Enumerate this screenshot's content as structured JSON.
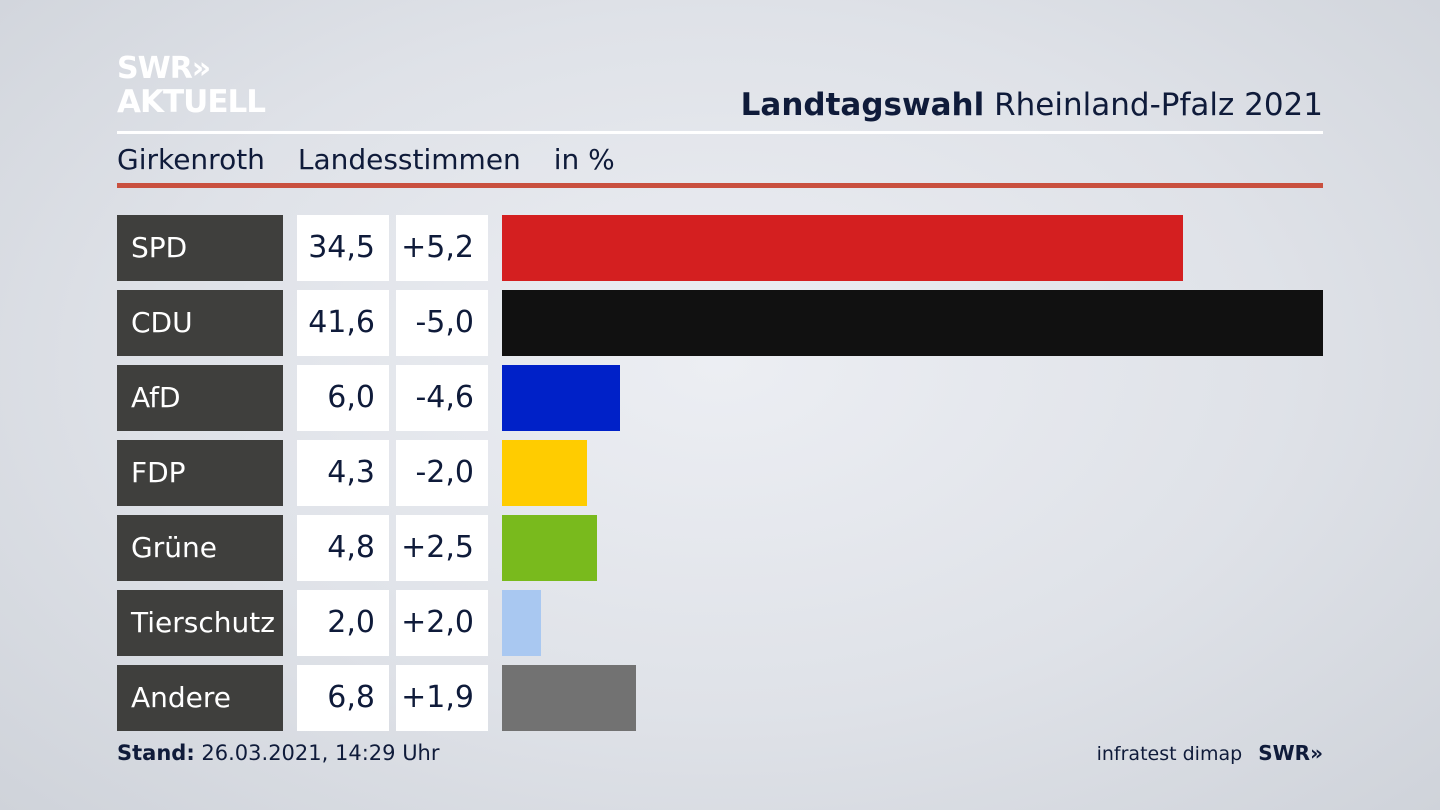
{
  "logo": {
    "line1": "SWR»",
    "line2": "AKTUELL"
  },
  "header": {
    "title_bold": "Landtagswahl",
    "title_rest": "Rheinland-Pfalz 2021"
  },
  "subtitle": {
    "place": "Girkenroth",
    "measure": "Landesstimmen",
    "unit": "in %"
  },
  "chart_data": {
    "type": "bar",
    "orientation": "horizontal",
    "categories": [
      "SPD",
      "CDU",
      "AfD",
      "FDP",
      "Grüne",
      "Tierschutz",
      "Andere"
    ],
    "values": [
      34.5,
      41.6,
      6.0,
      4.3,
      4.8,
      2.0,
      6.8
    ],
    "value_labels": [
      "34,5",
      "41,6",
      "6,0",
      "4,3",
      "4,8",
      "2,0",
      "6,8"
    ],
    "diff_labels": [
      "+5,2",
      "-5,0",
      "-4,6",
      "-2,0",
      "+2,5",
      "+2,0",
      "+1,9"
    ],
    "colors": [
      "#d41f20",
      "#111111",
      "#0021c8",
      "#ffcc00",
      "#79ba1d",
      "#a9c8f1",
      "#727272"
    ]
  },
  "footer": {
    "stand_label": "Stand:",
    "stand_value": "26.03.2021, 14:29 Uhr",
    "source": "infratest dimap",
    "brand": "SWR»"
  }
}
